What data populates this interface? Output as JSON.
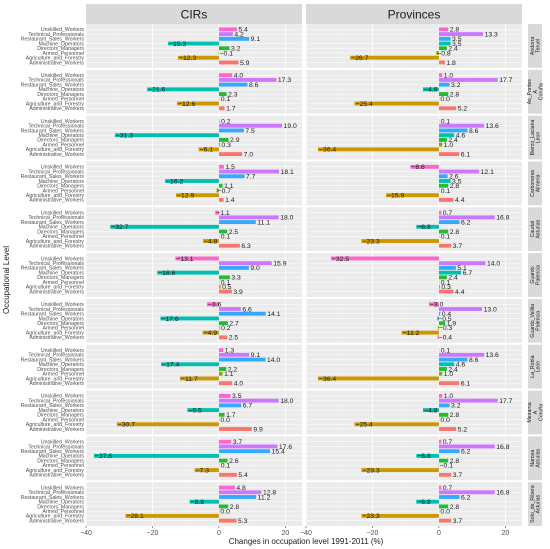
{
  "chart_data": {
    "type": "bar",
    "orientation": "horizontal",
    "xlabel": "Changes in occupation level 1991-2011 (%)",
    "ylabel": "Occupational Level",
    "xlim": [
      -40,
      25
    ],
    "xticks": [
      -40,
      -20,
      0,
      20
    ],
    "panels": [
      "CIRs",
      "Provinces"
    ],
    "categories": [
      "Unskilled_Workers",
      "Technical_Professionals",
      "Restaurant_Sales_Workers",
      "Machine_Operators",
      "Directors_Managers",
      "Armed_Personnel",
      "Agriculture_and_Forestry",
      "Administrative_Workers"
    ],
    "colors": [
      "#ff66cc",
      "#cc77ff",
      "#33aaff",
      "#00c0b0",
      "#22bb33",
      "#88aa00",
      "#cc9900",
      "#f8766d"
    ],
    "regions": [
      {
        "name": "Andorra Teruel",
        "cirs": [
          5.4,
          4.2,
          9.1,
          -15.3,
          3.2,
          -0.1,
          -12.3,
          5.9
        ],
        "provinces": [
          2.8,
          13.3,
          3.5,
          3.5,
          2.4,
          -0.8,
          -26.7,
          1.8
        ]
      },
      {
        "name": "As_Pontes A Coruña",
        "cirs": [
          4.0,
          17.3,
          8.6,
          -21.6,
          2.3,
          0.1,
          -12.6,
          1.7
        ],
        "provinces": [
          1.0,
          17.7,
          3.2,
          -4.8,
          2.8,
          0.0,
          -25.4,
          5.2
        ]
      },
      {
        "name": "Bierzo_Laciana Leon",
        "cirs": [
          0.2,
          19.0,
          7.5,
          -31.3,
          2.9,
          0.3,
          -6.1,
          7.0
        ],
        "provinces": [
          0.1,
          13.6,
          8.6,
          4.6,
          2.4,
          1.0,
          -36.4,
          6.1
        ]
      },
      {
        "name": "Carboneras Almería",
        "cirs": [
          1.5,
          18.1,
          7.7,
          -16.2,
          1.1,
          -0.7,
          -12.9,
          1.4
        ],
        "provinces": [
          -8.6,
          12.1,
          2.6,
          3.5,
          2.8,
          0.1,
          -15.9,
          4.4
        ]
      },
      {
        "name": "Caudal Asturias",
        "cirs": [
          -1.1,
          18.0,
          11.1,
          -32.7,
          2.5,
          0.1,
          -4.8,
          6.3
        ],
        "provinces": [
          0.7,
          16.8,
          6.2,
          -6.8,
          2.8,
          0.1,
          -23.3,
          3.7
        ]
      },
      {
        "name": "Guardo Palencia",
        "cirs": [
          -13.1,
          15.9,
          9.0,
          -18.6,
          3.3,
          0.1,
          0.5,
          3.9
        ],
        "provinces": [
          -32.5,
          14.0,
          5.1,
          6.7,
          2.4,
          0.1,
          0.3,
          4.4
        ]
      },
      {
        "name": "Guardo_Velilla Palencia",
        "cirs": [
          -3.6,
          6.6,
          14.1,
          -17.6,
          2.7,
          0.2,
          -4.9,
          2.5
        ],
        "provinces": [
          -3.0,
          13.0,
          0.4,
          -0.5,
          1.9,
          -0.3,
          -11.2,
          -0.4
        ]
      },
      {
        "name": "La_Robla León",
        "cirs": [
          1.3,
          9.1,
          14.0,
          -17.4,
          2.2,
          1.1,
          -11.7,
          4.0
        ],
        "provinces": [
          0.1,
          13.6,
          8.6,
          4.6,
          2.4,
          1.0,
          -36.4,
          6.1
        ]
      },
      {
        "name": "Meirama A Coruña",
        "cirs": [
          3.5,
          18.0,
          6.7,
          -9.5,
          1.7,
          0.0,
          -30.7,
          9.9
        ],
        "provinces": [
          1.0,
          17.7,
          3.2,
          -4.8,
          2.8,
          0.0,
          -25.4,
          5.2
        ]
      },
      {
        "name": "Narcea Asturias",
        "cirs": [
          3.7,
          17.6,
          15.4,
          -37.6,
          2.6,
          0.1,
          -7.3,
          5.4
        ],
        "provinces": [
          0.7,
          16.8,
          6.2,
          -6.8,
          2.8,
          -0.1,
          -23.3,
          3.7
        ]
      },
      {
        "name": "Soto_de_Ribera Asturias",
        "cirs": [
          4.8,
          12.8,
          11.2,
          -8.8,
          2.8,
          0.0,
          -28.1,
          5.3
        ],
        "provinces": [
          0.7,
          16.8,
          6.2,
          -6.8,
          2.8,
          0.0,
          -23.3,
          3.7
        ]
      }
    ]
  }
}
